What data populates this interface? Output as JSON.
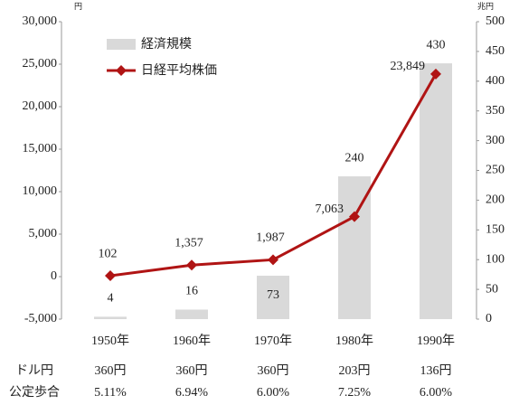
{
  "chart_data": {
    "type": "bar_line",
    "categories": [
      "1950年",
      "1960年",
      "1970年",
      "1980年",
      "1990年"
    ],
    "y_unit": "円",
    "y2_unit": "兆円",
    "ylim": [
      -5000,
      30000
    ],
    "yticks": [
      {
        "value": -5000,
        "label": "-5,000"
      },
      0,
      {
        "value": 5000,
        "label": "5,000"
      },
      {
        "value": 10000,
        "label": "10,000"
      },
      {
        "value": 15000,
        "label": "15,000"
      },
      {
        "value": 20000,
        "label": "20,000"
      },
      {
        "value": 25000,
        "label": "25,000"
      },
      {
        "value": 30000,
        "label": "30,000"
      }
    ],
    "y2lim": [
      0,
      500
    ],
    "y2ticks": [
      0,
      50,
      100,
      150,
      200,
      250,
      300,
      350,
      400,
      450,
      500
    ],
    "legend": "upper left",
    "series": [
      {
        "name": "経済規模",
        "type": "bar",
        "axis": "y2",
        "color": "#d9d9d9",
        "values": [
          4,
          16,
          73,
          240,
          430
        ]
      },
      {
        "name": "日経平均株価",
        "type": "line",
        "axis": "y",
        "color": "#b01414",
        "values": [
          102,
          1357,
          1987,
          7063,
          23849
        ],
        "value_labels": [
          "102",
          "1,357",
          "1,987",
          "7,063",
          "23,849"
        ]
      }
    ],
    "table": [
      {
        "label": "ドル円",
        "values": [
          "360円",
          "360円",
          "360円",
          "203円",
          "136円"
        ]
      },
      {
        "label": "公定歩合",
        "values": [
          "5.11%",
          "6.94%",
          "6.00%",
          "7.25%",
          "6.00%"
        ]
      }
    ]
  }
}
